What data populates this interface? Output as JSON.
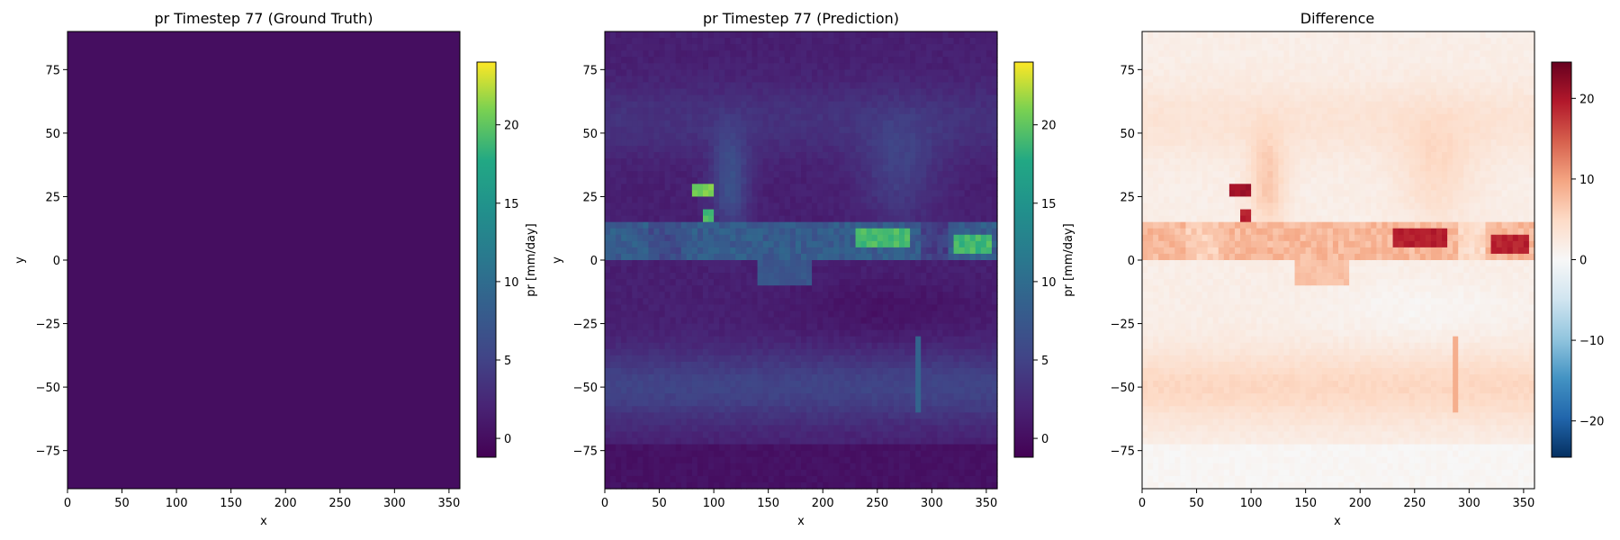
{
  "chart_data": [
    {
      "type": "heatmap",
      "title": "pr Timestep 77 (Ground Truth)",
      "xlabel": "x",
      "ylabel": "y",
      "xlim": [
        0,
        360
      ],
      "ylim": [
        -90,
        90
      ],
      "xticks": [
        "0",
        "50",
        "100",
        "150",
        "200",
        "250",
        "300",
        "350"
      ],
      "yticks": [
        "75",
        "50",
        "25",
        "0",
        "−25",
        "−50",
        "−75"
      ],
      "colormap": "viridis",
      "colorbar": {
        "label": "pr [mm/day]",
        "range": [
          -1.2,
          24
        ],
        "ticks": [
          "0",
          "5",
          "10",
          "15",
          "20"
        ]
      },
      "field": "uniform",
      "uniform_value": 0
    },
    {
      "type": "heatmap",
      "title": "pr Timestep 77 (Prediction)",
      "xlabel": "x",
      "ylabel": "y",
      "xlim": [
        0,
        360
      ],
      "ylim": [
        -90,
        90
      ],
      "xticks": [
        "0",
        "50",
        "100",
        "150",
        "200",
        "250",
        "300",
        "350"
      ],
      "yticks": [
        "75",
        "50",
        "25",
        "0",
        "−25",
        "−50",
        "−75"
      ],
      "colormap": "viridis",
      "colorbar": {
        "label": "pr [mm/day]",
        "range": [
          -1.2,
          24
        ],
        "ticks": [
          "0",
          "5",
          "10",
          "15",
          "20"
        ]
      },
      "field": "precip_prediction",
      "grid": [
        72,
        72
      ],
      "features": [
        {
          "kind": "itcz_band",
          "lat": [
            0,
            14
          ],
          "value": 8
        },
        {
          "kind": "hotspot",
          "x": [
            78,
            98
          ],
          "y": [
            24,
            30
          ],
          "value": 22
        },
        {
          "kind": "hotspot",
          "x": [
            92,
            100
          ],
          "y": [
            14,
            20
          ],
          "value": 20
        },
        {
          "kind": "hotspot",
          "x": [
            230,
            280
          ],
          "y": [
            4,
            12
          ],
          "value": 20
        },
        {
          "kind": "hotspot",
          "x": [
            320,
            355
          ],
          "y": [
            2,
            10
          ],
          "value": 20
        },
        {
          "kind": "storm_tracks",
          "lat": [
            -60,
            -40
          ],
          "value": 5
        },
        {
          "kind": "polar_dry",
          "lat": [
            -90,
            -72
          ],
          "value": 0
        }
      ]
    },
    {
      "type": "heatmap",
      "title": "Difference",
      "xlabel": "x",
      "ylabel": "",
      "xlim": [
        0,
        360
      ],
      "ylim": [
        -90,
        90
      ],
      "xticks": [
        "0",
        "50",
        "100",
        "150",
        "200",
        "250",
        "300",
        "350"
      ],
      "yticks": [
        "75",
        "50",
        "25",
        "0",
        "−25",
        "−50",
        "−75"
      ],
      "colormap": "RdBu_r",
      "colorbar": {
        "label": "",
        "range": [
          -24.5,
          24.5
        ],
        "ticks": [
          "20",
          "10",
          "0",
          "−10",
          "−20"
        ]
      },
      "field": "prediction_minus_truth"
    }
  ]
}
